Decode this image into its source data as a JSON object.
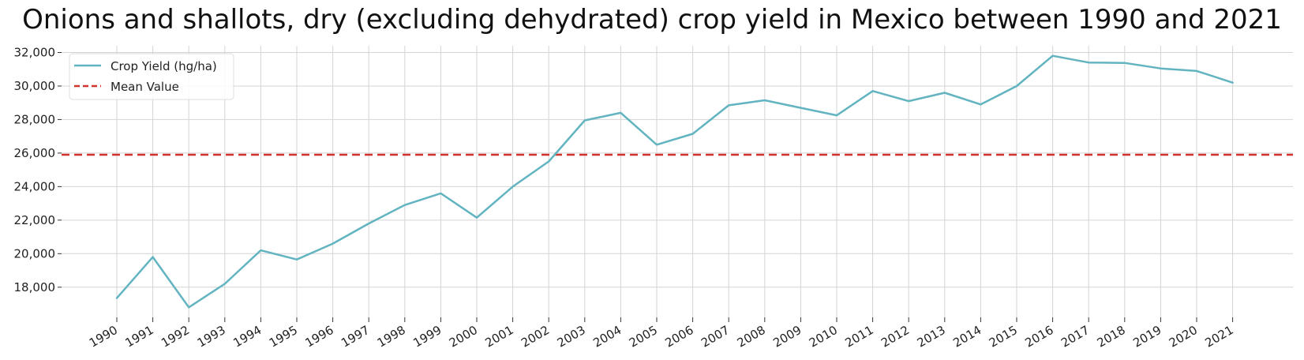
{
  "chart_data": {
    "type": "line",
    "title": "Onions and shallots, dry (excluding dehydrated) crop yield in Mexico between 1990 and 2021",
    "xlabel": "",
    "ylabel": "",
    "x": [
      "1990",
      "1991",
      "1992",
      "1993",
      "1994",
      "1995",
      "1996",
      "1997",
      "1998",
      "1999",
      "2000",
      "2001",
      "2002",
      "2003",
      "2004",
      "2005",
      "2006",
      "2007",
      "2008",
      "2009",
      "2010",
      "2011",
      "2012",
      "2013",
      "2014",
      "2015",
      "2016",
      "2017",
      "2018",
      "2019",
      "2020",
      "2021"
    ],
    "series": [
      {
        "name": "Crop Yield (hg/ha)",
        "color": "#62b4c0",
        "values": [
          17350,
          19800,
          16800,
          18200,
          20200,
          19650,
          20600,
          21800,
          22900,
          23600,
          22150,
          24000,
          25500,
          27950,
          28400,
          26500,
          27150,
          28850,
          29150,
          28700,
          28250,
          29700,
          29100,
          29600,
          28900,
          30000,
          31800,
          31400,
          31380,
          31050,
          30900,
          30200
        ]
      }
    ],
    "reference_lines": [
      {
        "name": "Mean Value",
        "color": "#d0342c",
        "style": "dashed",
        "value": 25900
      }
    ],
    "yticks": [
      18000,
      20000,
      22000,
      24000,
      26000,
      28000,
      30000,
      32000
    ],
    "ylim": [
      16200,
      32400
    ],
    "grid": true,
    "legend_position": "top-left"
  }
}
